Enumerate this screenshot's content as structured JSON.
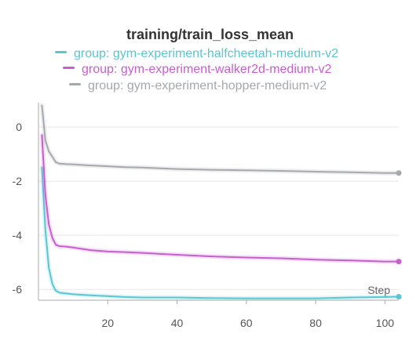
{
  "chart_data": {
    "type": "line",
    "title": "training/train_loss_mean",
    "xlabel": "Step",
    "ylabel": "",
    "xlim": [
      0,
      104
    ],
    "ylim": [
      -6.4,
      0.9
    ],
    "x_ticks": [
      20,
      40,
      60,
      80,
      100
    ],
    "y_ticks": [
      0,
      -2,
      -4,
      -6
    ],
    "grid": true,
    "legend_position": "top-center",
    "series": [
      {
        "name": "group: gym-experiment-halfcheetah-medium-v2",
        "color": "#5bc5d1",
        "x": [
          1,
          2,
          3,
          4,
          5,
          6,
          8,
          10,
          15,
          20,
          25,
          30,
          40,
          50,
          60,
          70,
          80,
          90,
          100,
          104
        ],
        "y": [
          -1.5,
          -3.8,
          -5.2,
          -5.8,
          -6.05,
          -6.12,
          -6.15,
          -6.18,
          -6.22,
          -6.25,
          -6.28,
          -6.3,
          -6.3,
          -6.32,
          -6.33,
          -6.33,
          -6.33,
          -6.3,
          -6.28,
          -6.27
        ]
      },
      {
        "name": "group: gym-experiment-walker2d-medium-v2",
        "color": "#c85dd0",
        "x": [
          1,
          2,
          3,
          4,
          5,
          6,
          8,
          10,
          15,
          20,
          25,
          30,
          40,
          50,
          60,
          70,
          80,
          90,
          100,
          104
        ],
        "y": [
          -0.3,
          -2.5,
          -3.6,
          -4.1,
          -4.35,
          -4.4,
          -4.42,
          -4.45,
          -4.55,
          -4.6,
          -4.62,
          -4.65,
          -4.72,
          -4.78,
          -4.82,
          -4.85,
          -4.9,
          -4.93,
          -4.97,
          -4.97
        ]
      },
      {
        "name": "group: gym-experiment-hopper-medium-v2",
        "color": "#a5a9ad",
        "x": [
          1,
          2,
          3,
          4,
          5,
          6,
          8,
          10,
          15,
          20,
          25,
          30,
          40,
          50,
          60,
          70,
          80,
          90,
          100,
          104
        ],
        "y": [
          0.8,
          -0.5,
          -0.9,
          -1.1,
          -1.3,
          -1.35,
          -1.37,
          -1.38,
          -1.42,
          -1.45,
          -1.48,
          -1.5,
          -1.55,
          -1.58,
          -1.6,
          -1.62,
          -1.65,
          -1.67,
          -1.7,
          -1.7
        ]
      }
    ]
  }
}
